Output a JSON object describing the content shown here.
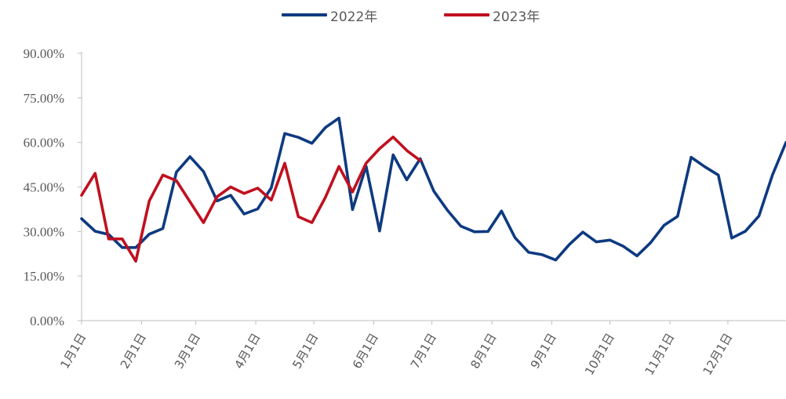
{
  "chart_data": {
    "type": "line",
    "ylim": [
      0,
      90
    ],
    "y_ticks": [
      "0.00%",
      "15.00%",
      "30.00%",
      "45.00%",
      "60.00%",
      "75.00%",
      "90.00%"
    ],
    "x_range_weeks": [
      0,
      52
    ],
    "x_ticks": [
      "1月1日",
      "2月1日",
      "3月1日",
      "4月1日",
      "5月1日",
      "6月1日",
      "7月1日",
      "8月1日",
      "9月1日",
      "10月1日",
      "11月1日",
      "12月1日"
    ],
    "x_tick_positions": [
      0,
      4.43,
      8.43,
      12.86,
      17.14,
      21.57,
      25.86,
      30.29,
      34.71,
      39.0,
      43.43,
      47.71
    ],
    "legend_position": "top",
    "series": [
      {
        "name": "2022年",
        "color": "#0E3A80",
        "x": [
          0,
          1,
          2,
          3,
          4,
          5,
          6,
          7,
          8,
          9,
          10,
          11,
          12,
          13,
          14,
          15,
          16,
          17,
          18,
          19,
          20,
          21,
          22,
          23,
          24,
          25,
          26,
          27,
          28,
          29,
          30,
          31,
          32,
          33,
          34,
          35,
          36,
          37,
          38,
          39,
          40,
          41,
          42,
          43,
          44,
          45,
          46,
          47,
          48,
          49,
          50,
          51,
          52
        ],
        "values": [
          34.3,
          30.1,
          29.0,
          24.6,
          24.6,
          29.1,
          31.0,
          50.0,
          55.2,
          50.2,
          40.3,
          42.2,
          35.9,
          37.6,
          44.7,
          63.0,
          61.7,
          59.7,
          65.0,
          68.2,
          37.4,
          52.0,
          30.2,
          55.8,
          47.4,
          54.5,
          43.6,
          37.2,
          31.8,
          29.9,
          30.0,
          36.9,
          27.9,
          23.0,
          22.2,
          20.4,
          25.6,
          29.8,
          26.5,
          27.1,
          25.0,
          21.8,
          26.2,
          32.1,
          35.1,
          55.0,
          51.8,
          49.0,
          27.8,
          30.1,
          35.2,
          49.0,
          60.0
        ]
      },
      {
        "name": "2023年",
        "color": "#C0101F",
        "x": [
          0,
          1,
          2,
          3,
          4,
          5,
          6,
          7,
          8,
          9,
          10,
          11,
          12,
          13,
          14,
          15,
          16,
          17,
          18,
          19,
          20,
          21,
          22,
          23,
          24,
          25
        ],
        "values": [
          42.2,
          49.6,
          27.5,
          27.5,
          20.0,
          40.3,
          49.0,
          47.1,
          40.0,
          33.0,
          41.7,
          45.0,
          42.8,
          44.6,
          40.6,
          53.0,
          35.0,
          33.0,
          41.5,
          51.9,
          43.3,
          53.0,
          57.9,
          61.8,
          57.3,
          53.9
        ]
      }
    ]
  }
}
